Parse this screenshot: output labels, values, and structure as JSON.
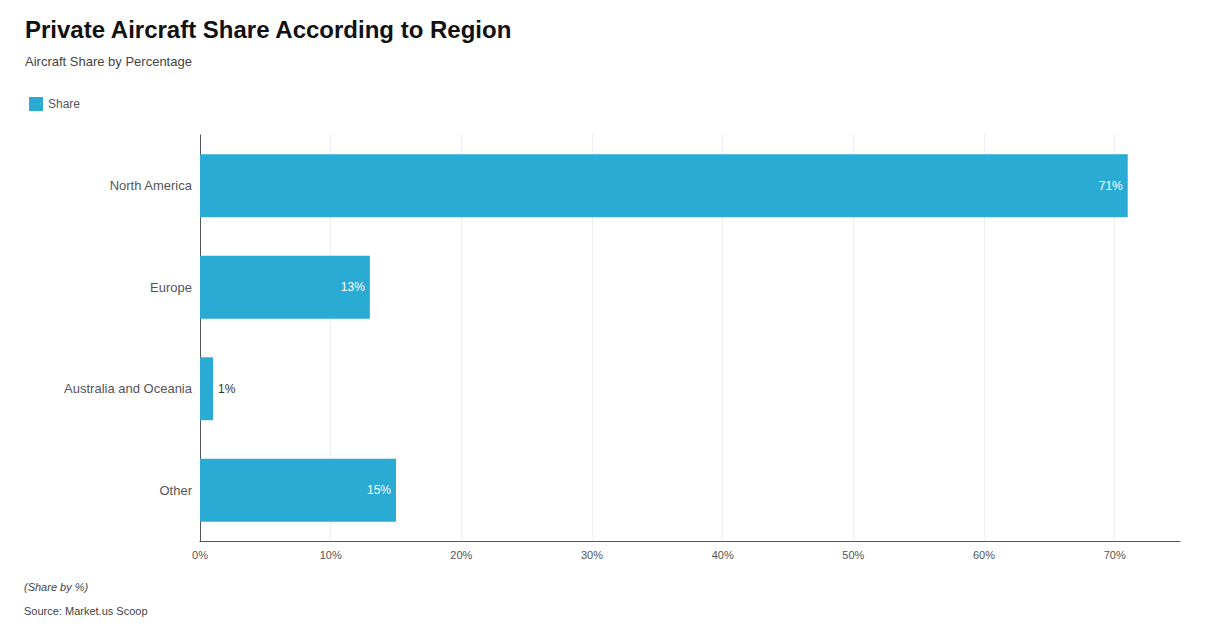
{
  "chart_data": {
    "type": "bar",
    "title": "Private Aircraft Share According to Region",
    "subtitle": "Aircraft Share by Percentage",
    "orientation": "horizontal",
    "categories": [
      "North America",
      "Europe",
      "Australia and Oceania",
      "Other"
    ],
    "series": [
      {
        "name": "Share",
        "color": "#29ABD4",
        "values": [
          71,
          13,
          1,
          15
        ],
        "value_labels": [
          "71%",
          "13%",
          "1%",
          "15%"
        ]
      }
    ],
    "xlim": [
      0,
      75
    ],
    "xticks": [
      {
        "value": 0,
        "label": "0%"
      },
      {
        "value": 10,
        "label": "10%"
      },
      {
        "value": 20,
        "label": "20%"
      },
      {
        "value": 30,
        "label": "30%"
      },
      {
        "value": 40,
        "label": "40%"
      },
      {
        "value": 50,
        "label": "50%"
      },
      {
        "value": 60,
        "label": "60%"
      },
      {
        "value": 70,
        "label": "70%"
      }
    ],
    "grid": true,
    "legend": "upper left",
    "data_labels": true,
    "annotations": [
      "(Share by %)",
      "Source: Market.us Scoop"
    ]
  }
}
